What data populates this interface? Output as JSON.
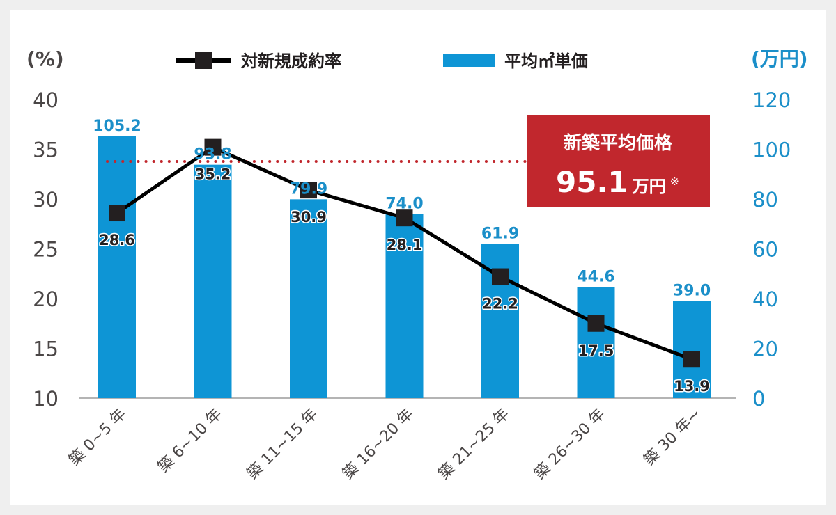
{
  "chart_data": {
    "type": "bar",
    "categories": [
      "築 0~5 年",
      "築 6~10 年",
      "築 11~15 年",
      "築 16~20 年",
      "築 21~25 年",
      "築 26~30 年",
      "築 30 年~"
    ],
    "series": [
      {
        "name": "平均㎡単価",
        "kind": "bar",
        "axis": "right",
        "values": [
          105.2,
          93.8,
          79.9,
          74.0,
          61.9,
          44.6,
          39.0
        ],
        "labels": [
          "105.2",
          "93.8",
          "79.9",
          "74.0",
          "61.9",
          "44.6",
          "39.0"
        ]
      },
      {
        "name": "対新規成約率",
        "kind": "line",
        "axis": "left",
        "values": [
          28.6,
          35.2,
          30.9,
          28.1,
          22.2,
          17.5,
          13.9
        ],
        "labels": [
          "28.6",
          "35.2",
          "30.9",
          "28.1",
          "22.2",
          "17.5",
          "13.9"
        ]
      }
    ],
    "y_left": {
      "unit": "(%)",
      "range": [
        10,
        40
      ],
      "ticks": [
        "10",
        "15",
        "20",
        "25",
        "30",
        "35",
        "40"
      ]
    },
    "y_right": {
      "unit": "(万円)",
      "range": [
        0,
        120
      ],
      "ticks": [
        "0",
        "20",
        "40",
        "60",
        "80",
        "100",
        "120"
      ]
    },
    "reference_line": {
      "value": 95.1,
      "axis": "right",
      "style": "dotted",
      "color": "#c1272d"
    },
    "annotation": {
      "title": "新築平均価格",
      "value": "95.1",
      "unit": "万円",
      "note": "※"
    },
    "legend_position": "top-center",
    "grid": false,
    "colors": {
      "bar": "#0e95d5",
      "line": "#000000",
      "marker": "#231f20",
      "reference": "#c1272d",
      "badge": "#c1272d",
      "right_axis": "#1b8fc9",
      "left_axis": "#4a4646"
    }
  }
}
